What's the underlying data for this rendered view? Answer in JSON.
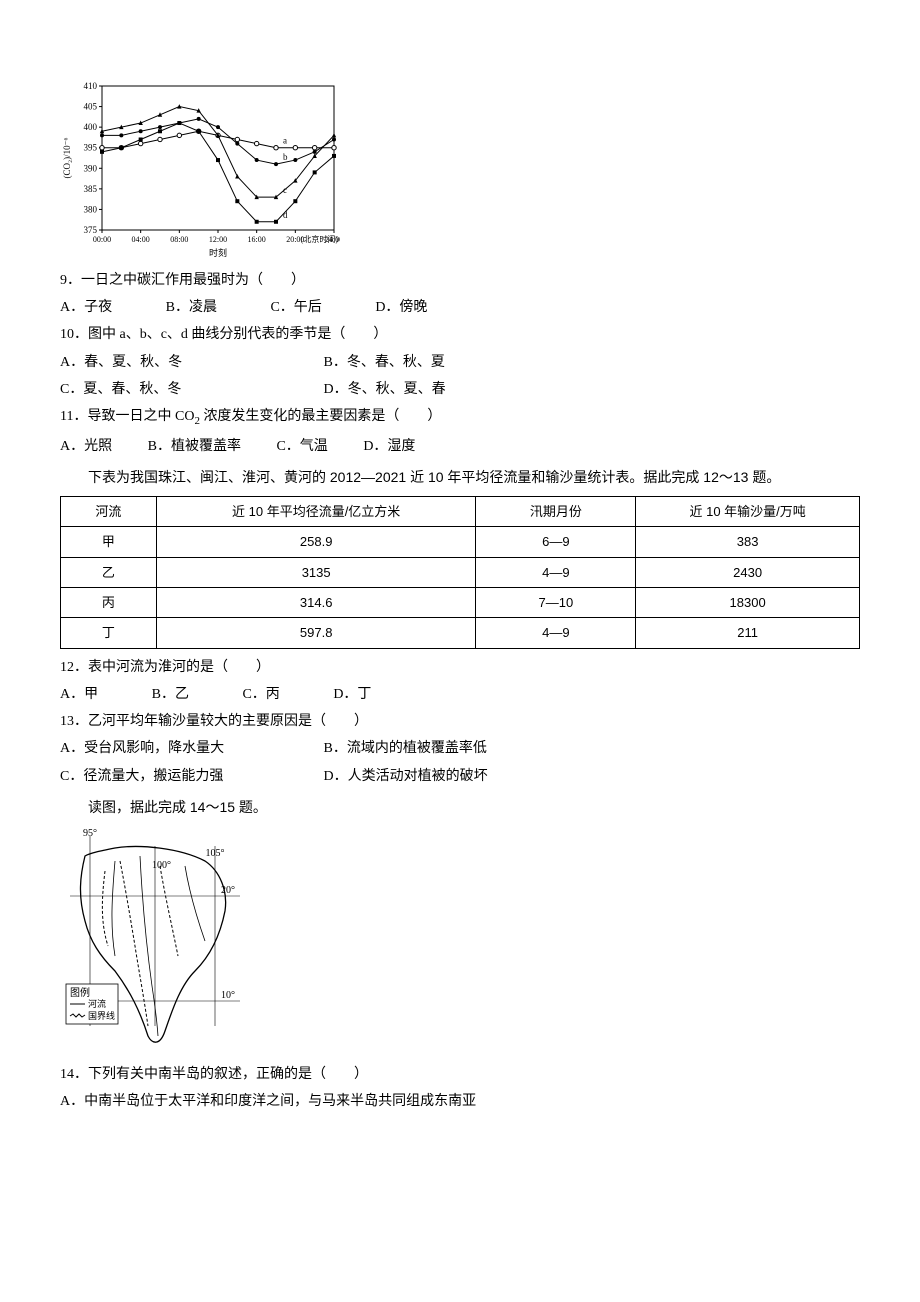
{
  "chart": {
    "type": "line",
    "ylabel": "(CO₂)/10⁻⁶",
    "xlabel": "时刻",
    "xlabel_suffix": "(北京时间)",
    "ylim": [
      375,
      410
    ],
    "yticks": [
      375,
      380,
      385,
      390,
      395,
      400,
      405,
      410
    ],
    "xticks": [
      "00:00",
      "04:00",
      "08:00",
      "12:00",
      "16:00",
      "20:00",
      "24:00"
    ],
    "bg": "#ffffff",
    "axis_color": "#000000",
    "font_size": 9,
    "series": {
      "a": {
        "marker": "circle-open",
        "color": "#000",
        "values": [
          395,
          395,
          396,
          397,
          398,
          399,
          398,
          397,
          396,
          395,
          395,
          395,
          395
        ]
      },
      "b": {
        "marker": "circle",
        "color": "#000",
        "values": [
          398,
          398,
          399,
          400,
          401,
          402,
          400,
          396,
          392,
          391,
          392,
          394,
          397
        ]
      },
      "c": {
        "marker": "triangle",
        "color": "#000",
        "values": [
          399,
          400,
          401,
          403,
          405,
          404,
          398,
          388,
          383,
          383,
          387,
          393,
          398
        ]
      },
      "d": {
        "marker": "square",
        "color": "#000",
        "values": [
          394,
          395,
          397,
          399,
          401,
          399,
          392,
          382,
          377,
          377,
          382,
          389,
          393
        ]
      }
    }
  },
  "q9": {
    "stem": "9．一日之中碳汇作用最强时为（　　）",
    "A": "A．子夜",
    "B": "B．凌晨",
    "C": "C．午后",
    "D": "D．傍晚"
  },
  "q10": {
    "stem": "10．图中 a、b、c、d 曲线分别代表的季节是（　　）",
    "A": "A．春、夏、秋、冬",
    "B": "B．冬、春、秋、夏",
    "C": "C．夏、春、秋、冬",
    "D": "D．冬、秋、夏、春"
  },
  "q11": {
    "stem_pre": "11．导致一日之中 CO",
    "stem_sub": "2",
    "stem_post": " 浓度发生变化的最主要因素是（　　）",
    "A": "A．光照",
    "B": "B．植被覆盖率",
    "C": "C．气温",
    "D": "D．湿度"
  },
  "table_intro": "下表为我国珠江、闽江、淮河、黄河的 2012—2021 近 10 年平均径流量和输沙量统计表。据此完成 12～13 题。",
  "table": {
    "columns": [
      "河流",
      "近 10 年平均径流量/亿立方米",
      "汛期月份",
      "近 10 年输沙量/万吨"
    ],
    "rows": [
      [
        "甲",
        "258.9",
        "6—9",
        "383"
      ],
      [
        "乙",
        "3135",
        "4—9",
        "2430"
      ],
      [
        "丙",
        "314.6",
        "7—10",
        "18300"
      ],
      [
        "丁",
        "597.8",
        "4—9",
        "211"
      ]
    ],
    "col_widths": [
      "12%",
      "40%",
      "20%",
      "28%"
    ]
  },
  "q12": {
    "stem": "12．表中河流为淮河的是（　　）",
    "A": "A．甲",
    "B": "B．乙",
    "C": "C．丙",
    "D": "D．丁"
  },
  "q13": {
    "stem": "13．乙河平均年输沙量较大的主要原因是（　　）",
    "A": "A．受台风影响，降水量大",
    "B": "B．流域内的植被覆盖率低",
    "C": "C．径流量大，搬运能力强",
    "D": "D．人类活动对植被的破坏"
  },
  "map_intro": "读图，据此完成 14～15 题。",
  "map": {
    "type": "map",
    "labels": {
      "lon95": "95°",
      "lon100": "100°",
      "lon105": "105°",
      "lat20": "20°",
      "lat10": "10°"
    },
    "legend_title": "图例",
    "legend_river": "河流",
    "legend_border": "国界线",
    "colors": {
      "land": "#ffffff",
      "line": "#000000"
    }
  },
  "q14": {
    "stem": "14．下列有关中南半岛的叙述，正确的是（　　）",
    "A": "A．中南半岛位于太平洋和印度洋之间，与马来半岛共同组成东南亚"
  }
}
